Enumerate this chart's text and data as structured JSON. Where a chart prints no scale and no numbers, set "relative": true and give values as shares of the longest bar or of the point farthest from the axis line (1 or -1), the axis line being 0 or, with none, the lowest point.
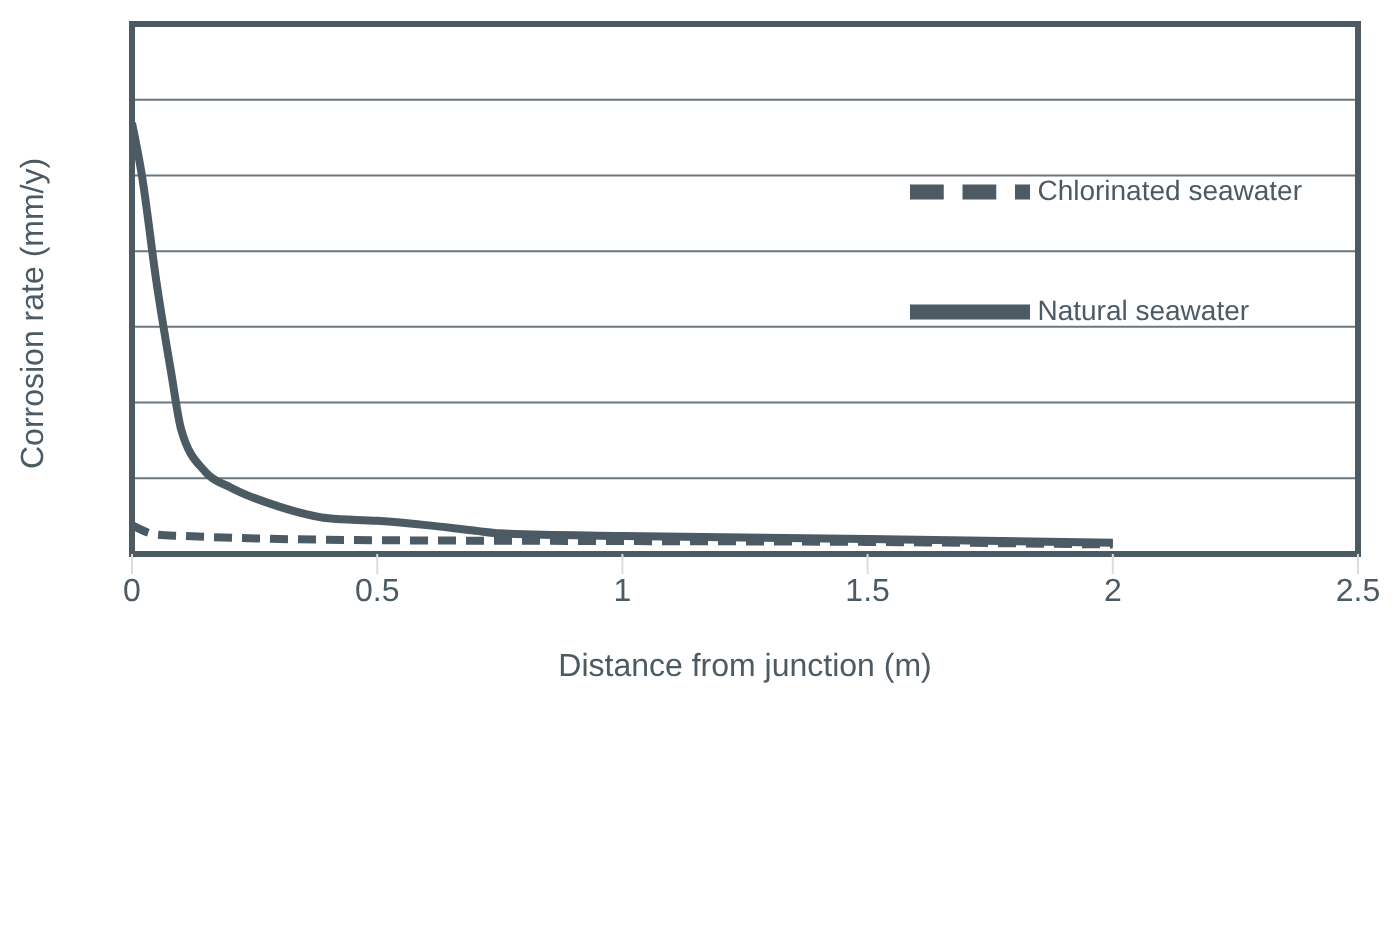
{
  "chart_data": {
    "type": "line",
    "xlabel": "Distance from junction (m)",
    "ylabel": "Corrosion rate (mm/y)",
    "relative": true,
    "xlim": [
      0,
      2.5
    ],
    "xticks": [
      0,
      0.5,
      1,
      1.5,
      2,
      2.5
    ],
    "grid": "y",
    "legend": "top right",
    "marker": "none",
    "series": [
      {
        "name": "Natural seawater",
        "color": "#4b5a63",
        "line_style": "solid",
        "x": [
          0,
          0.02,
          0.05,
          0.08,
          0.1,
          0.15,
          0.2,
          0.3,
          0.4,
          0.5,
          0.6,
          0.7,
          0.75,
          1,
          1.5,
          2
        ],
        "values": [
          1.0,
          0.88,
          0.63,
          0.42,
          0.29,
          0.19,
          0.155,
          0.11,
          0.083,
          0.077,
          0.067,
          0.054,
          0.048,
          0.042,
          0.035,
          0.026
        ]
      },
      {
        "name": "Chlorinated seawater",
        "color": "#4b5a63",
        "line_style": "dashed",
        "x": [
          0,
          0.05,
          0.1,
          0.5,
          1,
          1.5,
          2
        ],
        "values": [
          0.067,
          0.045,
          0.042,
          0.032,
          0.03,
          0.028,
          0.022
        ]
      }
    ]
  }
}
